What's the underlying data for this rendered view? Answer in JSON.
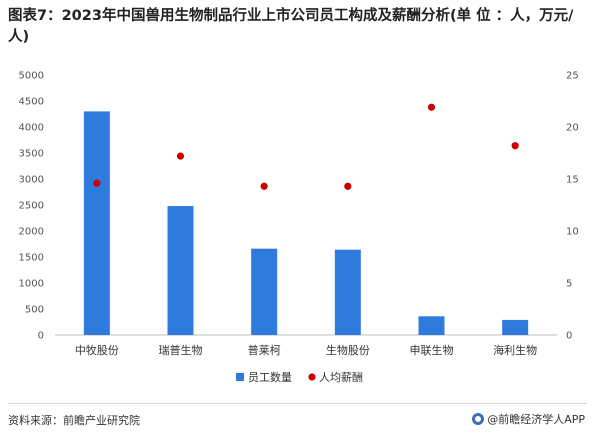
{
  "title": "图表7：2023年中国兽用生物制品行业上市公司员工构成及薪酬分析(单 位 ：人，万元/人)",
  "footer": {
    "source": "资料来源：前瞻产业研究院",
    "brand": "@前瞻经济学人APP",
    "brand_icon": "qianzhan-logo-icon"
  },
  "chart_data": {
    "type": "bar",
    "categories": [
      "中牧股份",
      "瑞普生物",
      "普莱柯",
      "生物股份",
      "申联生物",
      "海利生物"
    ],
    "series": [
      {
        "name": "员工数量",
        "type": "bar",
        "axis": "left",
        "color": "#2e7bdd",
        "values": [
          4300,
          2480,
          1660,
          1640,
          360,
          290
        ]
      },
      {
        "name": "人均薪酬",
        "type": "scatter",
        "axis": "right",
        "color": "#cc0000",
        "values": [
          14.6,
          17.2,
          14.3,
          14.3,
          21.9,
          18.2
        ]
      }
    ],
    "left_axis": {
      "ylim": [
        0,
        5000
      ],
      "ticks": [
        0,
        500,
        1000,
        1500,
        2000,
        2500,
        3000,
        3500,
        4000,
        4500,
        5000
      ]
    },
    "right_axis": {
      "ylim": [
        0,
        25
      ],
      "ticks": [
        0,
        5,
        10,
        15,
        20,
        25
      ]
    },
    "legend": {
      "position": "bottom",
      "items": [
        "员工数量",
        "人均薪酬"
      ]
    },
    "grid": false
  }
}
